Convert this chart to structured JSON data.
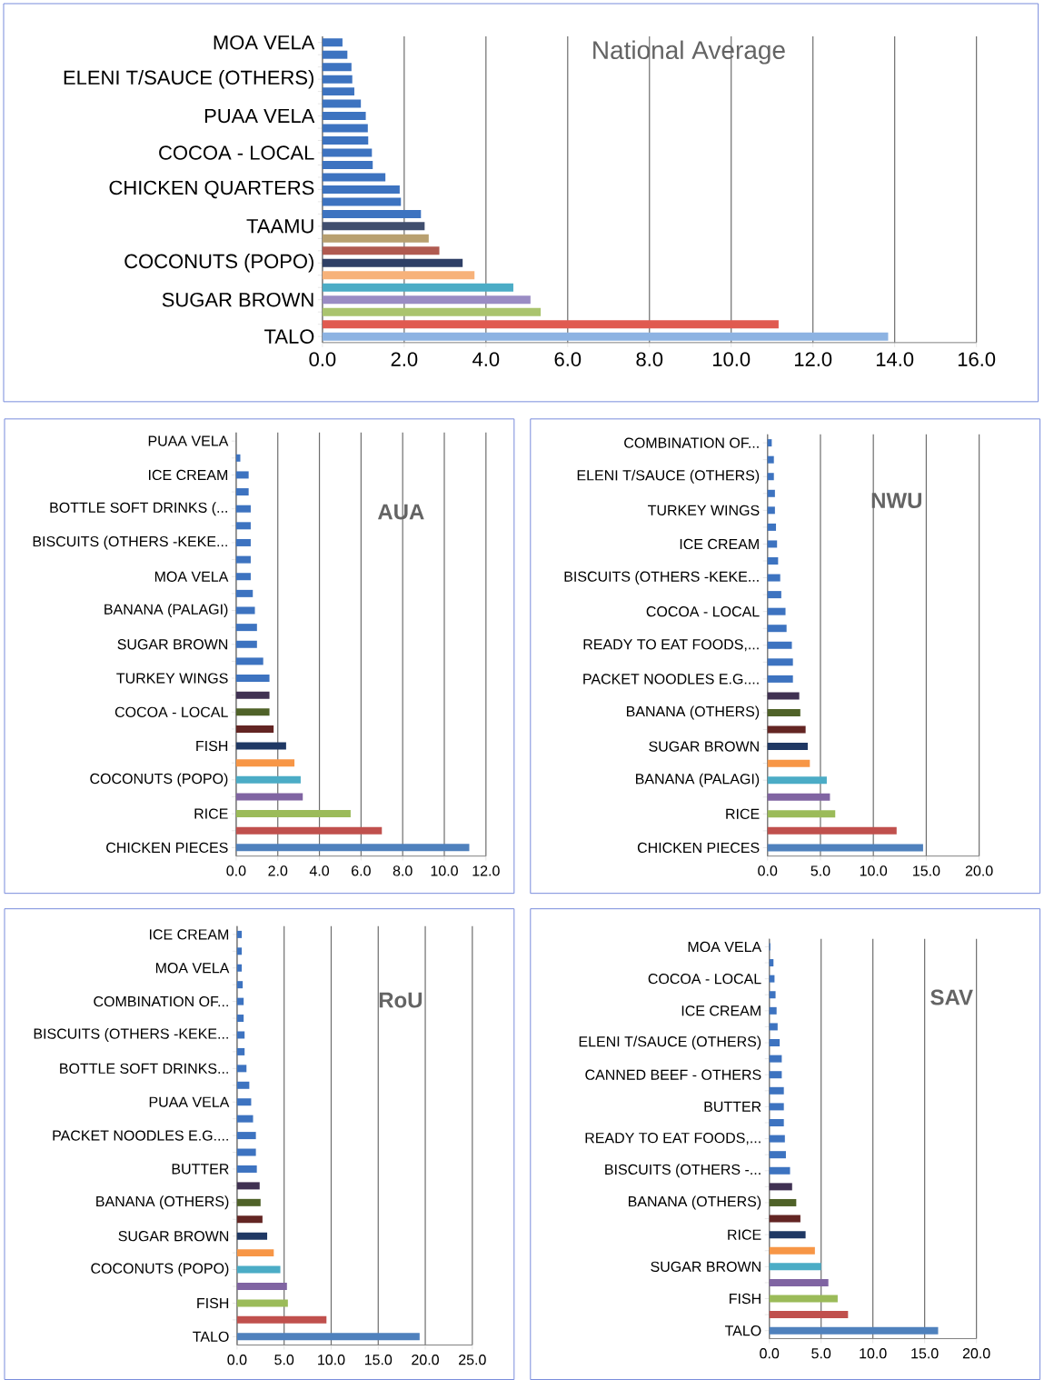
{
  "chart_data": [
    {
      "type": "bar",
      "orientation": "horizontal",
      "title": "National Average",
      "grid": "x",
      "categories": [
        "MOA VELA",
        null,
        null,
        "ELENI T/SAUCE (OTHERS)",
        null,
        null,
        "PUAA VELA",
        null,
        null,
        "COCOA - LOCAL",
        null,
        null,
        "CHICKEN QUARTERS",
        null,
        null,
        "TAAMU",
        null,
        null,
        "COCONUTS (POPO)",
        null,
        null,
        "SUGAR BROWN",
        null,
        null,
        "TALO"
      ],
      "values": [
        0.49,
        0.61,
        0.71,
        0.73,
        0.78,
        0.94,
        1.06,
        1.11,
        1.12,
        1.21,
        1.23,
        1.54,
        1.89,
        1.92,
        2.41,
        2.5,
        2.6,
        2.86,
        3.43,
        3.72,
        4.67,
        5.09,
        5.34,
        11.16,
        13.84
      ],
      "colors": [
        "#3d73c0",
        "#3d73c0",
        "#3d73c0",
        "#3d73c0",
        "#3d73c0",
        "#3d73c0",
        "#3d73c0",
        "#3d73c0",
        "#3d73c0",
        "#3d73c0",
        "#3d73c0",
        "#3d73c0",
        "#3d73c0",
        "#3d73c0",
        "#3d73c0",
        "#404e6e",
        "#b8a070",
        "#b05a50",
        "#2e3f66",
        "#f7b27a",
        "#4bacc6",
        "#9a8cc4",
        "#aac46e",
        "#e05a50",
        "#8db3e2"
      ],
      "xlim": [
        0,
        16
      ],
      "xticks": [
        {
          "value": 0,
          "label": "0.0"
        },
        {
          "value": 2,
          "label": "2.0"
        },
        {
          "value": 4,
          "label": "4.0"
        },
        {
          "value": 6,
          "label": "6.0"
        },
        {
          "value": 8,
          "label": "8.0"
        },
        {
          "value": 10,
          "label": "10.0"
        },
        {
          "value": 12,
          "label": "12.0"
        },
        {
          "value": 14,
          "label": "14.0"
        },
        {
          "value": 16,
          "label": "16.0"
        }
      ]
    },
    {
      "type": "bar",
      "orientation": "horizontal",
      "title": "AUA",
      "grid": "x",
      "categories": [
        "PUAA VELA",
        null,
        "ICE CREAM",
        null,
        "BOTTLE SOFT DRINKS (...",
        null,
        "BISCUITS (OTHERS -KEKE...",
        null,
        "MOA VELA",
        null,
        "BANANA (PALAGI)",
        null,
        "SUGAR BROWN",
        null,
        "TURKEY WINGS",
        null,
        "COCOA - LOCAL",
        null,
        "FISH",
        null,
        "COCONUTS (POPO)",
        null,
        "RICE",
        null,
        "CHICKEN PIECES"
      ],
      "values": [
        0,
        0.2,
        0.6,
        0.6,
        0.7,
        0.7,
        0.7,
        0.7,
        0.7,
        0.8,
        0.9,
        1.0,
        1.0,
        1.3,
        1.6,
        1.6,
        1.6,
        1.8,
        2.4,
        2.8,
        3.1,
        3.2,
        5.5,
        7.0,
        11.2
      ],
      "colors": [
        "#3d73c0",
        "#3d73c0",
        "#3d73c0",
        "#3d73c0",
        "#3d73c0",
        "#3d73c0",
        "#3d73c0",
        "#3d73c0",
        "#3d73c0",
        "#3d73c0",
        "#3d73c0",
        "#3d73c0",
        "#3d73c0",
        "#3d73c0",
        "#3d73c0",
        "#403152",
        "#4f6228",
        "#632523",
        "#1f3864",
        "#f79646",
        "#4bacc6",
        "#8064a2",
        "#9bbb59",
        "#c0504d",
        "#4f81bd"
      ],
      "xlim": [
        0,
        12
      ],
      "xticks": [
        {
          "value": 0,
          "label": "0.0"
        },
        {
          "value": 2,
          "label": "2.0"
        },
        {
          "value": 4,
          "label": "4.0"
        },
        {
          "value": 6,
          "label": "6.0"
        },
        {
          "value": 8,
          "label": "8.0"
        },
        {
          "value": 10,
          "label": "10.0"
        },
        {
          "value": 12,
          "label": "12.0"
        }
      ]
    },
    {
      "type": "bar",
      "orientation": "horizontal",
      "title": "NWU",
      "grid": "x",
      "categories": [
        "COMBINATION OF...",
        null,
        "ELENI T/SAUCE (OTHERS)",
        null,
        "TURKEY WINGS",
        null,
        "ICE CREAM",
        null,
        "BISCUITS (OTHERS -KEKE...",
        null,
        "COCOA - LOCAL",
        null,
        "READY TO EAT FOODS,...",
        null,
        "PACKET NOODLES E.G....",
        null,
        "BANANA (OTHERS)",
        null,
        "SUGAR BROWN",
        null,
        "BANANA (PALAGI)",
        null,
        "RICE",
        null,
        "CHICKEN PIECES"
      ],
      "values": [
        0.4,
        0.6,
        0.6,
        0.7,
        0.7,
        0.8,
        0.9,
        1.0,
        1.2,
        1.3,
        1.7,
        1.8,
        2.3,
        2.4,
        2.4,
        3.0,
        3.1,
        3.6,
        3.8,
        4.0,
        5.6,
        5.9,
        6.4,
        12.2,
        14.7
      ],
      "colors": [
        "#3d73c0",
        "#3d73c0",
        "#3d73c0",
        "#3d73c0",
        "#3d73c0",
        "#3d73c0",
        "#3d73c0",
        "#3d73c0",
        "#3d73c0",
        "#3d73c0",
        "#3d73c0",
        "#3d73c0",
        "#3d73c0",
        "#3d73c0",
        "#3d73c0",
        "#403152",
        "#4f6228",
        "#632523",
        "#1f3864",
        "#f79646",
        "#4bacc6",
        "#8064a2",
        "#9bbb59",
        "#c0504d",
        "#4f81bd"
      ],
      "xlim": [
        0,
        20
      ],
      "xticks": [
        {
          "value": 0,
          "label": "0.0"
        },
        {
          "value": 5,
          "label": "5.0"
        },
        {
          "value": 10,
          "label": "10.0"
        },
        {
          "value": 15,
          "label": "15.0"
        },
        {
          "value": 20,
          "label": "20.0"
        }
      ]
    },
    {
      "type": "bar",
      "orientation": "horizontal",
      "title": "RoU",
      "grid": "x",
      "categories": [
        "ICE CREAM",
        null,
        "MOA VELA",
        null,
        "COMBINATION OF...",
        null,
        "BISCUITS (OTHERS -KEKE...",
        null,
        "BOTTLE SOFT DRINKS...",
        null,
        "PUAA VELA",
        null,
        "PACKET NOODLES E.G....",
        null,
        "BUTTER",
        null,
        "BANANA (OTHERS)",
        null,
        "SUGAR BROWN",
        null,
        "COCONUTS (POPO)",
        null,
        "FISH",
        null,
        "TALO"
      ],
      "values": [
        0.5,
        0.5,
        0.5,
        0.6,
        0.7,
        0.7,
        0.8,
        0.8,
        1.0,
        1.3,
        1.5,
        1.7,
        2.0,
        2.0,
        2.1,
        2.4,
        2.5,
        2.7,
        3.2,
        3.9,
        4.6,
        5.3,
        5.4,
        9.5,
        19.4
      ],
      "colors": [
        "#3d73c0",
        "#3d73c0",
        "#3d73c0",
        "#3d73c0",
        "#3d73c0",
        "#3d73c0",
        "#3d73c0",
        "#3d73c0",
        "#3d73c0",
        "#3d73c0",
        "#3d73c0",
        "#3d73c0",
        "#3d73c0",
        "#3d73c0",
        "#3d73c0",
        "#403152",
        "#4f6228",
        "#632523",
        "#1f3864",
        "#f79646",
        "#4bacc6",
        "#8064a2",
        "#9bbb59",
        "#c0504d",
        "#4f81bd"
      ],
      "xlim": [
        0,
        25
      ],
      "xticks": [
        {
          "value": 0,
          "label": "0.0"
        },
        {
          "value": 5,
          "label": "5.0"
        },
        {
          "value": 10,
          "label": "10.0"
        },
        {
          "value": 15,
          "label": "15.0"
        },
        {
          "value": 20,
          "label": "20.0"
        },
        {
          "value": 25,
          "label": "25.0"
        }
      ]
    },
    {
      "type": "bar",
      "orientation": "horizontal",
      "title": "SAV",
      "grid": "x",
      "categories": [
        "MOA VELA",
        null,
        "COCOA - LOCAL",
        null,
        "ICE CREAM",
        null,
        "ELENI T/SAUCE (OTHERS)",
        null,
        "CANNED BEEF - OTHERS",
        null,
        "BUTTER",
        null,
        "READY TO EAT FOODS,...",
        null,
        "BISCUITS (OTHERS -...",
        null,
        "BANANA (OTHERS)",
        null,
        "RICE",
        null,
        "SUGAR BROWN",
        null,
        "FISH",
        null,
        "TALO"
      ],
      "values": [
        0.1,
        0.4,
        0.5,
        0.6,
        0.7,
        0.8,
        1.0,
        1.2,
        1.2,
        1.4,
        1.4,
        1.4,
        1.5,
        1.6,
        2.0,
        2.2,
        2.6,
        3.0,
        3.5,
        4.4,
        5.0,
        5.7,
        6.6,
        7.6,
        16.3
      ],
      "colors": [
        "#3d73c0",
        "#3d73c0",
        "#3d73c0",
        "#3d73c0",
        "#3d73c0",
        "#3d73c0",
        "#3d73c0",
        "#3d73c0",
        "#3d73c0",
        "#3d73c0",
        "#3d73c0",
        "#3d73c0",
        "#3d73c0",
        "#3d73c0",
        "#3d73c0",
        "#403152",
        "#4f6228",
        "#632523",
        "#1f3864",
        "#f79646",
        "#4bacc6",
        "#8064a2",
        "#9bbb59",
        "#c0504d",
        "#4f81bd"
      ],
      "xlim": [
        0,
        20
      ],
      "xticks": [
        {
          "value": 0,
          "label": "0.0"
        },
        {
          "value": 5,
          "label": "5.0"
        },
        {
          "value": 10,
          "label": "10.0"
        },
        {
          "value": 15,
          "label": "15.0"
        },
        {
          "value": 20,
          "label": "20.0"
        }
      ]
    }
  ]
}
